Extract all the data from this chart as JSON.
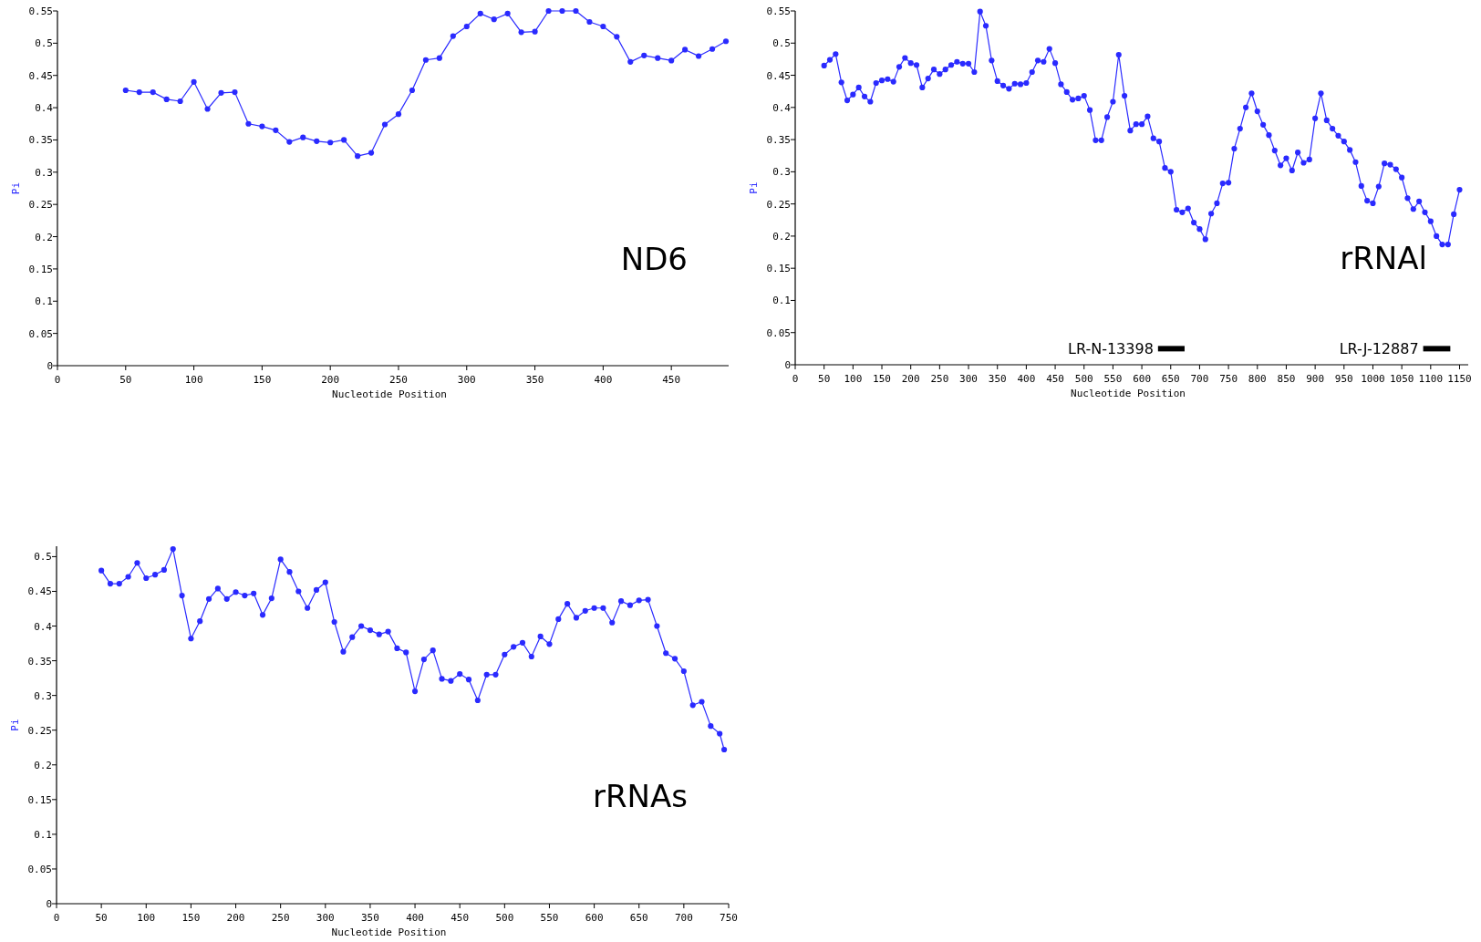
{
  "chart_data": [
    {
      "type": "line",
      "xlabel": "Nucleotide Position",
      "ylabel": "Pi",
      "annotations": [
        "ND6"
      ],
      "marker": "circle",
      "line_style": "solid",
      "grid": false,
      "xlim": [
        0,
        492
      ],
      "ylim": [
        0,
        0.55
      ],
      "xticks": [
        0,
        50,
        100,
        150,
        200,
        250,
        300,
        350,
        400,
        450
      ],
      "yticks": [
        0,
        0.05,
        0.1,
        0.15,
        0.2,
        0.25,
        0.3,
        0.35,
        0.4,
        0.45,
        0.5,
        0.55
      ],
      "x": [
        50,
        60,
        70,
        80,
        90,
        100,
        110,
        120,
        130,
        140,
        150,
        160,
        170,
        180,
        190,
        200,
        210,
        220,
        230,
        240,
        250,
        260,
        270,
        280,
        290,
        300,
        310,
        320,
        330,
        340,
        350,
        360,
        370,
        380,
        390,
        400,
        410,
        420,
        430,
        440,
        450,
        460,
        470,
        480,
        490
      ],
      "series": [
        {
          "color": "#2a2aff",
          "values": [
            0.427,
            0.424,
            0.424,
            0.413,
            0.41,
            0.44,
            0.398,
            0.423,
            0.424,
            0.375,
            0.371,
            0.365,
            0.347,
            0.354,
            0.348,
            0.346,
            0.35,
            0.325,
            0.33,
            0.374,
            0.39,
            0.427,
            0.474,
            0.477,
            0.511,
            0.526,
            0.546,
            0.537,
            0.546,
            0.517,
            0.518,
            0.55,
            0.55,
            0.55,
            0.533,
            0.526,
            0.51,
            0.471,
            0.481,
            0.477,
            0.473,
            0.49,
            0.48,
            0.491,
            0.503
          ]
        }
      ]
    },
    {
      "type": "line",
      "xlabel": "Nucleotide Position",
      "ylabel": "Pi",
      "marker": "circle",
      "line_style": "solid",
      "grid": false,
      "xlim": [
        0,
        1165
      ],
      "ylim": [
        0,
        0.55
      ],
      "xticks": [
        0,
        50,
        100,
        150,
        200,
        250,
        300,
        350,
        400,
        450,
        500,
        550,
        600,
        650,
        700,
        750,
        800,
        850,
        900,
        950,
        1000,
        1050,
        1100,
        1150
      ],
      "yticks": [
        0,
        0.05,
        0.1,
        0.15,
        0.2,
        0.25,
        0.3,
        0.35,
        0.4,
        0.45,
        0.5,
        0.55
      ],
      "annotations": [
        "rRNAl"
      ],
      "x": [
        50,
        60,
        70,
        80,
        90,
        100,
        110,
        120,
        130,
        140,
        150,
        160,
        170,
        180,
        190,
        200,
        210,
        220,
        230,
        240,
        250,
        260,
        270,
        280,
        290,
        300,
        310,
        320,
        330,
        340,
        350,
        360,
        370,
        380,
        390,
        400,
        410,
        420,
        430,
        440,
        450,
        460,
        470,
        480,
        490,
        500,
        510,
        520,
        530,
        540,
        550,
        560,
        570,
        580,
        590,
        600,
        610,
        620,
        630,
        640,
        650,
        660,
        670,
        680,
        690,
        700,
        710,
        720,
        730,
        740,
        750,
        760,
        770,
        780,
        790,
        800,
        810,
        820,
        830,
        840,
        850,
        860,
        870,
        880,
        890,
        900,
        910,
        920,
        930,
        940,
        950,
        960,
        970,
        980,
        990,
        1000,
        1010,
        1020,
        1030,
        1040,
        1050,
        1060,
        1070,
        1080,
        1090,
        1100,
        1110,
        1120,
        1130,
        1140,
        1150
      ],
      "series": [
        {
          "color": "#2a2aff",
          "values": [
            0.465,
            0.474,
            0.483,
            0.439,
            0.411,
            0.42,
            0.431,
            0.417,
            0.409,
            0.438,
            0.442,
            0.444,
            0.44,
            0.463,
            0.477,
            0.469,
            0.466,
            0.431,
            0.445,
            0.459,
            0.452,
            0.459,
            0.466,
            0.471,
            0.468,
            0.468,
            0.455,
            0.549,
            0.527,
            0.473,
            0.441,
            0.434,
            0.429,
            0.437,
            0.436,
            0.438,
            0.455,
            0.473,
            0.471,
            0.491,
            0.469,
            0.436,
            0.424,
            0.412,
            0.414,
            0.418,
            0.396,
            0.349,
            0.349,
            0.385,
            0.409,
            0.482,
            0.418,
            0.364,
            0.374,
            0.374,
            0.386,
            0.352,
            0.347,
            0.306,
            0.3,
            0.241,
            0.237,
            0.243,
            0.221,
            0.211,
            0.195,
            0.235,
            0.251,
            0.282,
            0.283,
            0.336,
            0.367,
            0.4,
            0.422,
            0.394,
            0.373,
            0.357,
            0.333,
            0.31,
            0.321,
            0.302,
            0.33,
            0.314,
            0.319,
            0.383,
            0.422,
            0.38,
            0.367,
            0.356,
            0.347,
            0.334,
            0.315,
            0.278,
            0.255,
            0.251,
            0.277,
            0.313,
            0.311,
            0.304,
            0.291,
            0.259,
            0.242,
            0.254,
            0.237,
            0.223,
            0.2,
            0.187,
            0.187,
            0.234,
            0.272
          ]
        },
        {
          "name": "LR-N-13398",
          "color": "#000000",
          "marker": "none",
          "x": [
            628,
            674
          ],
          "values": [
            0.025,
            0.025
          ]
        },
        {
          "name": "LR-J-12887",
          "color": "#000000",
          "marker": "none",
          "x": [
            1087,
            1134
          ],
          "values": [
            0.025,
            0.025
          ]
        }
      ]
    },
    {
      "type": "line",
      "xlabel": "Nucleotide Position",
      "ylabel": "Pi",
      "annotations": [
        "rRNAs"
      ],
      "marker": "circle",
      "line_style": "solid",
      "grid": false,
      "xlim": [
        0,
        750
      ],
      "ylim": [
        0,
        0.515
      ],
      "xticks": [
        0,
        50,
        100,
        150,
        200,
        250,
        300,
        350,
        400,
        450,
        500,
        550,
        600,
        650,
        700,
        750
      ],
      "yticks": [
        0,
        0.05,
        0.1,
        0.15,
        0.2,
        0.25,
        0.3,
        0.35,
        0.4,
        0.45,
        0.5
      ],
      "x": [
        50,
        60,
        70,
        80,
        90,
        100,
        110,
        120,
        130,
        140,
        150,
        160,
        170,
        180,
        190,
        200,
        210,
        220,
        230,
        240,
        250,
        260,
        270,
        280,
        290,
        300,
        310,
        320,
        330,
        340,
        350,
        360,
        370,
        380,
        390,
        400,
        410,
        420,
        430,
        440,
        450,
        460,
        470,
        480,
        490,
        500,
        510,
        520,
        530,
        540,
        550,
        560,
        570,
        580,
        590,
        600,
        610,
        620,
        630,
        640,
        650,
        660,
        670,
        680,
        690,
        700,
        710,
        720,
        730,
        740,
        745
      ],
      "series": [
        {
          "color": "#2a2aff",
          "values": [
            0.48,
            0.461,
            0.461,
            0.471,
            0.491,
            0.469,
            0.474,
            0.481,
            0.511,
            0.444,
            0.382,
            0.407,
            0.439,
            0.454,
            0.439,
            0.449,
            0.444,
            0.447,
            0.416,
            0.44,
            0.496,
            0.478,
            0.45,
            0.426,
            0.452,
            0.463,
            0.406,
            0.363,
            0.384,
            0.4,
            0.394,
            0.388,
            0.392,
            0.368,
            0.362,
            0.306,
            0.352,
            0.365,
            0.324,
            0.321,
            0.331,
            0.323,
            0.293,
            0.33,
            0.33,
            0.359,
            0.37,
            0.376,
            0.356,
            0.385,
            0.374,
            0.41,
            0.432,
            0.412,
            0.422,
            0.426,
            0.426,
            0.405,
            0.436,
            0.43,
            0.437,
            0.438,
            0.4,
            0.361,
            0.353,
            0.335,
            0.286,
            0.291,
            0.256,
            0.245,
            0.222
          ]
        }
      ]
    }
  ]
}
